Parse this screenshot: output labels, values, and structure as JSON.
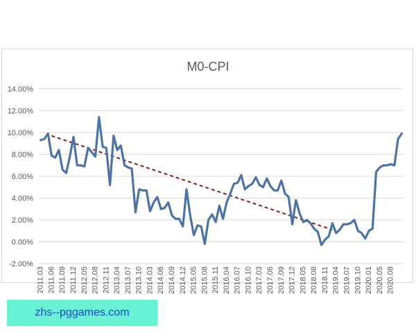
{
  "chart_data": {
    "type": "line",
    "title": "M0-CPI",
    "xlabel": "",
    "ylabel": "",
    "y_tick_labels": [
      "14.00%",
      "12.00%",
      "10.00%",
      "8.00%",
      "6.00%",
      "4.00%",
      "2.00%",
      "0.00%",
      "-2.00%"
    ],
    "y_ticks": [
      14,
      12,
      10,
      8,
      6,
      4,
      2,
      0,
      -2
    ],
    "ylim": [
      -2,
      14
    ],
    "grid": true,
    "legend": "none",
    "line_color": "#4a73a8",
    "trend_color": "#8b1a1a",
    "x_tick_labels": [
      "2011.03",
      "2011.06",
      "2011.09",
      "2011.12",
      "2012.05",
      "2012.08",
      "2012.11",
      "2013.04",
      "2013.07",
      "2013.10",
      "2014.03",
      "2014.06",
      "2014.09",
      "2014.12",
      "2015.05",
      "2015.08",
      "2015.11",
      "2016.04",
      "2016.07",
      "2016.10",
      "2017.03",
      "2017.06",
      "2017.09",
      "2017.12",
      "2018.05",
      "2018.08",
      "2018.11",
      "2019.04",
      "2019.07",
      "2019.10",
      "2020.01",
      "2020.05",
      "2020.08"
    ],
    "series": [
      {
        "values": [
          9.3,
          9.4,
          9.9,
          7.9,
          7.7,
          8.4,
          6.6,
          6.3,
          7.8,
          9.6,
          7.0,
          7.0,
          6.9,
          8.6,
          8.2,
          7.8,
          11.4,
          8.7,
          8.6,
          5.2,
          9.7,
          8.4,
          8.8,
          7.0,
          6.8,
          6.7,
          2.7,
          4.8,
          4.7,
          4.7,
          2.8,
          3.6,
          4.1,
          3.0,
          3.1,
          3.6,
          2.4,
          2.1,
          2.1,
          1.4,
          4.8,
          2.4,
          0.6,
          1.5,
          1.4,
          -0.2,
          2.0,
          2.5,
          1.8,
          3.3,
          2.1,
          3.6,
          4.4,
          5.3,
          5.4,
          6.1,
          4.8,
          5.1,
          5.3,
          5.9,
          5.2,
          5.0,
          5.8,
          5.1,
          4.7,
          4.7,
          5.6,
          4.4,
          4.1,
          1.6,
          3.8,
          2.6,
          1.8,
          2.0,
          1.7,
          1.2,
          0.9,
          -0.3,
          0.2,
          0.5,
          1.7,
          0.8,
          1.1,
          1.6,
          1.6,
          1.7,
          2.0,
          1.0,
          0.8,
          0.3,
          1.0,
          1.2,
          6.4,
          6.8,
          7.0,
          7.0,
          7.1,
          7.0,
          9.4,
          9.9
        ]
      }
    ],
    "trend_line": {
      "start": [
        3,
        9.7
      ],
      "end": [
        80,
        1.1
      ]
    }
  },
  "watermark_text": "zhs--pggames.com"
}
